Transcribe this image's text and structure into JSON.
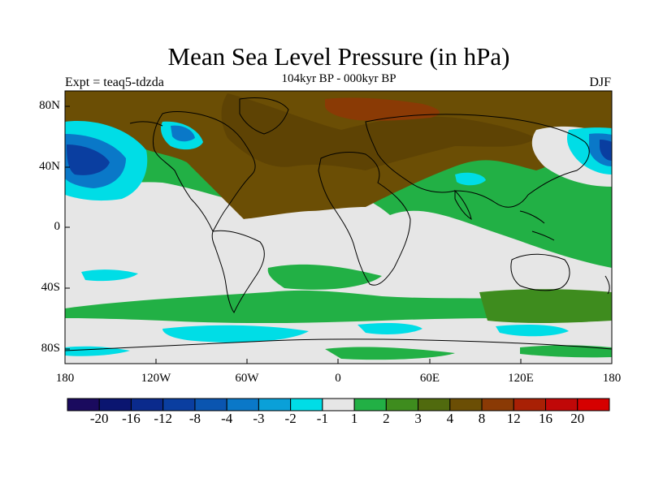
{
  "title": "Mean Sea Level Pressure (in hPa)",
  "subtitle": "104kyr BP - 000kyr BP",
  "experiment_label": "Expt = teaq5-tdzda",
  "season": "DJF",
  "map": {
    "lat_labels": [
      "80N",
      "40N",
      "0",
      "40S",
      "80S"
    ],
    "lon_labels": [
      "180",
      "120W",
      "60W",
      "0",
      "60E",
      "120E",
      "180"
    ]
  },
  "colorbar": {
    "labels": [
      "-20",
      "-16",
      "-12",
      "-8",
      "-4",
      "-3",
      "-2",
      "-1",
      "1",
      "2",
      "3",
      "4",
      "8",
      "12",
      "16",
      "20"
    ],
    "colors": [
      "#1a0a5e",
      "#0a1570",
      "#0a2a8c",
      "#0a3ea0",
      "#0a55b0",
      "#0a78c8",
      "#0aa0d8",
      "#00dde6",
      "#e6e6e6",
      "#22b045",
      "#3e8c1e",
      "#506a0e",
      "#6b4e05",
      "#8a3a05",
      "#a82005",
      "#c00808",
      "#d60000"
    ]
  },
  "colors": {
    "neutral": "#e6e6e6",
    "green": "#22b045",
    "brown": "#6b4e05",
    "cyan": "#00dde6",
    "blue": "#0a3ea0"
  }
}
